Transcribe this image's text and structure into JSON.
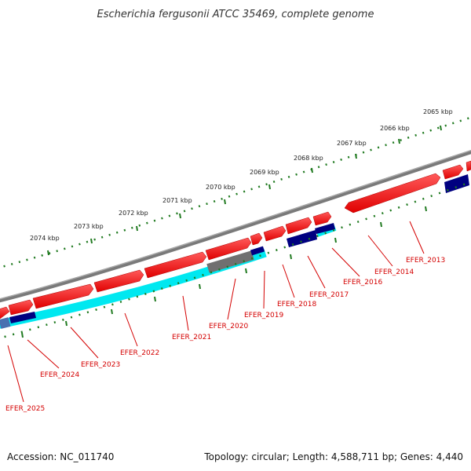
{
  "title": "Escherichia fergusonii ATCC 35469, complete genome",
  "footer": {
    "accession": "Accession: NC_011740",
    "summary": "Topology: circular; Length: 4,588,711 bp; Genes: 4,440"
  },
  "scale_labels": [
    "2065 kbp",
    "2066 kbp",
    "2067 kbp",
    "2068 kbp",
    "2069 kbp",
    "2070 kbp",
    "2071 kbp",
    "2072 kbp",
    "2073 kbp",
    "2074 kbp"
  ],
  "gene_labels": [
    "EFER_2013",
    "EFER_2014",
    "EFER_2016",
    "EFER_2017",
    "EFER_2018",
    "EFER_2019",
    "EFER_2020",
    "EFER_2021",
    "EFER_2022",
    "EFER_2023",
    "EFER_2024",
    "EFER_2025"
  ],
  "colors": {
    "backbone": "#808080",
    "forward_cds": "#ff0000",
    "reverse_cds": "#000080",
    "reverse_gc": "#00ffff",
    "other_feature": "#707070",
    "label": "#d40000",
    "ticks": "#207a20"
  }
}
